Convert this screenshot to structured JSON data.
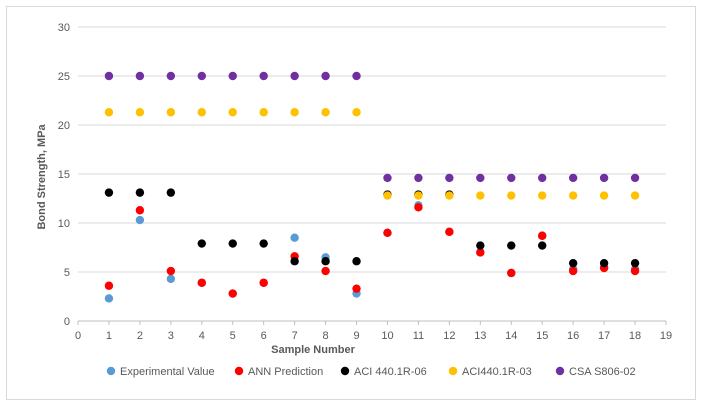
{
  "chart_data": {
    "type": "scatter",
    "title": "",
    "xlabel": "Sample Number",
    "ylabel": "Bond Strength, MPa",
    "xlim": [
      0,
      19
    ],
    "ylim": [
      0,
      30
    ],
    "xticks": [
      "0",
      "1",
      "2",
      "3",
      "4",
      "5",
      "6",
      "7",
      "8",
      "9",
      "10",
      "11",
      "12",
      "13",
      "14",
      "15",
      "16",
      "17",
      "18",
      "19"
    ],
    "yticks": [
      "0",
      "5",
      "10",
      "15",
      "20",
      "25",
      "30"
    ],
    "grid": "horizontal",
    "legend_position": "bottom",
    "series": [
      {
        "name": "Experimental Value",
        "color": "#5b9bd5",
        "x": [
          1,
          2,
          3,
          4,
          5,
          6,
          7,
          8,
          9,
          10,
          11,
          12,
          13,
          14,
          15,
          16,
          17,
          18
        ],
        "y": [
          2.3,
          10.3,
          4.3,
          3.9,
          2.8,
          3.9,
          8.5,
          6.5,
          2.8,
          9.0,
          11.8,
          9.1,
          7.0,
          4.9,
          8.7,
          5.3,
          5.5,
          5.3
        ]
      },
      {
        "name": "ANN Prediction",
        "color": "#ff0000",
        "x": [
          1,
          2,
          3,
          4,
          5,
          6,
          7,
          8,
          9,
          10,
          11,
          12,
          13,
          14,
          15,
          16,
          17,
          18
        ],
        "y": [
          3.6,
          11.3,
          5.1,
          3.9,
          2.8,
          3.9,
          6.6,
          5.1,
          3.3,
          9.0,
          11.6,
          9.1,
          7.0,
          4.9,
          8.7,
          5.1,
          5.4,
          5.1
        ]
      },
      {
        "name": "ACI 440.1R-06",
        "color": "#000000",
        "x": [
          1,
          2,
          3,
          4,
          5,
          6,
          7,
          8,
          9,
          10,
          11,
          12,
          13,
          14,
          15,
          16,
          17,
          18
        ],
        "y": [
          13.1,
          13.1,
          13.1,
          7.9,
          7.9,
          7.9,
          6.1,
          6.1,
          6.1,
          12.9,
          12.9,
          12.9,
          7.7,
          7.7,
          7.7,
          5.9,
          5.9,
          5.9
        ]
      },
      {
        "name": "ACI440.1R-03",
        "color": "#ffc000",
        "x": [
          1,
          2,
          3,
          4,
          5,
          6,
          7,
          8,
          9,
          10,
          11,
          12,
          13,
          14,
          15,
          16,
          17,
          18
        ],
        "y": [
          21.3,
          21.3,
          21.3,
          21.3,
          21.3,
          21.3,
          21.3,
          21.3,
          21.3,
          12.8,
          12.8,
          12.8,
          12.8,
          12.8,
          12.8,
          12.8,
          12.8,
          12.8
        ]
      },
      {
        "name": "CSA S806-02",
        "color": "#7030a0",
        "x": [
          1,
          2,
          3,
          4,
          5,
          6,
          7,
          8,
          9,
          10,
          11,
          12,
          13,
          14,
          15,
          16,
          17,
          18
        ],
        "y": [
          25.0,
          25.0,
          25.0,
          25.0,
          25.0,
          25.0,
          25.0,
          25.0,
          25.0,
          14.6,
          14.6,
          14.6,
          14.6,
          14.6,
          14.6,
          14.6,
          14.6,
          14.6
        ]
      }
    ]
  }
}
